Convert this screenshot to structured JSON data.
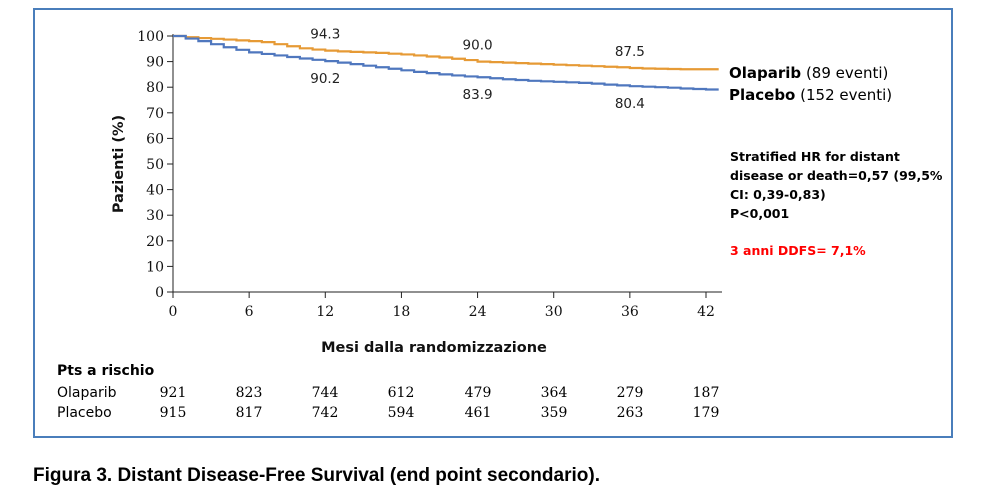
{
  "caption": "Figura 3. Distant Disease-Free Survival (end point secondario).",
  "colors": {
    "olaparib": "#e69a35",
    "placebo": "#4f77be",
    "frame": "#4a7ebb",
    "highlight": "#ff0000"
  },
  "legend": {
    "olaparib": {
      "name": "Olaparib",
      "events": "(89 eventi)"
    },
    "placebo": {
      "name": "Placebo",
      "events": "(152 eventi)"
    }
  },
  "stats_text": "Stratified HR for distant disease or death=0,57 (99,5% CI: 0,39-0,83)",
  "p_value": "P<0,001",
  "highlight_text": "3 anni DDFS= 7,1%",
  "risk_table": {
    "title": "Pts a rischio",
    "rows": [
      {
        "label": "Olaparib",
        "values": [
          "921",
          "823",
          "744",
          "612",
          "479",
          "364",
          "279",
          "187"
        ]
      },
      {
        "label": "Placebo",
        "values": [
          "915",
          "817",
          "742",
          "594",
          "461",
          "359",
          "263",
          "179"
        ]
      }
    ]
  },
  "chart_data": {
    "type": "line",
    "title": "",
    "xlabel": "Mesi dalla randomizzazione",
    "ylabel": "Pazienti (%)",
    "xlim": [
      0,
      42
    ],
    "ylim": [
      0,
      100
    ],
    "xticks": [
      0,
      6,
      12,
      18,
      24,
      30,
      36,
      42
    ],
    "yticks": [
      0,
      10,
      20,
      30,
      40,
      50,
      60,
      70,
      80,
      90,
      100
    ],
    "grid": false,
    "legend_position": "right",
    "series": [
      {
        "name": "Olaparib",
        "x": [
          0,
          1,
          2,
          3,
          4,
          5,
          6,
          7,
          8,
          9,
          10,
          11,
          12,
          13,
          14,
          15,
          16,
          17,
          18,
          19,
          20,
          21,
          22,
          23,
          24,
          25,
          26,
          27,
          28,
          29,
          30,
          31,
          32,
          33,
          34,
          35,
          36,
          37,
          38,
          39,
          40,
          41,
          42,
          43
        ],
        "y": [
          100,
          99.5,
          99.2,
          98.9,
          98.6,
          98.3,
          98.0,
          97.6,
          96.8,
          96.0,
          95.2,
          94.7,
          94.3,
          94.0,
          93.8,
          93.6,
          93.4,
          93.1,
          92.8,
          92.4,
          92.0,
          91.6,
          91.1,
          90.6,
          90.0,
          89.8,
          89.6,
          89.4,
          89.2,
          89.0,
          88.8,
          88.6,
          88.4,
          88.2,
          88.0,
          87.8,
          87.5,
          87.3,
          87.2,
          87.1,
          87.0,
          87.0,
          87.0,
          87.0
        ]
      },
      {
        "name": "Placebo",
        "x": [
          0,
          1,
          2,
          3,
          4,
          5,
          6,
          7,
          8,
          9,
          10,
          11,
          12,
          13,
          14,
          15,
          16,
          17,
          18,
          19,
          20,
          21,
          22,
          23,
          24,
          25,
          26,
          27,
          28,
          29,
          30,
          31,
          32,
          33,
          34,
          35,
          36,
          37,
          38,
          39,
          40,
          41,
          42,
          43
        ],
        "y": [
          100,
          99.0,
          98.0,
          96.8,
          95.6,
          94.6,
          93.6,
          93.0,
          92.4,
          91.8,
          91.2,
          90.7,
          90.2,
          89.6,
          89.0,
          88.4,
          87.8,
          87.2,
          86.6,
          86.0,
          85.5,
          85.0,
          84.6,
          84.2,
          83.9,
          83.5,
          83.1,
          82.8,
          82.5,
          82.3,
          82.1,
          81.9,
          81.7,
          81.4,
          81.0,
          80.7,
          80.4,
          80.2,
          80.0,
          79.8,
          79.5,
          79.3,
          79.1,
          79.1
        ]
      }
    ],
    "annotations": [
      {
        "series": "Olaparib",
        "x": 12,
        "label": "94.3"
      },
      {
        "series": "Olaparib",
        "x": 24,
        "label": "90.0"
      },
      {
        "series": "Olaparib",
        "x": 36,
        "label": "87.5"
      },
      {
        "series": "Placebo",
        "x": 12,
        "label": "90.2"
      },
      {
        "series": "Placebo",
        "x": 24,
        "label": "83.9"
      },
      {
        "series": "Placebo",
        "x": 36,
        "label": "80.4"
      }
    ]
  }
}
